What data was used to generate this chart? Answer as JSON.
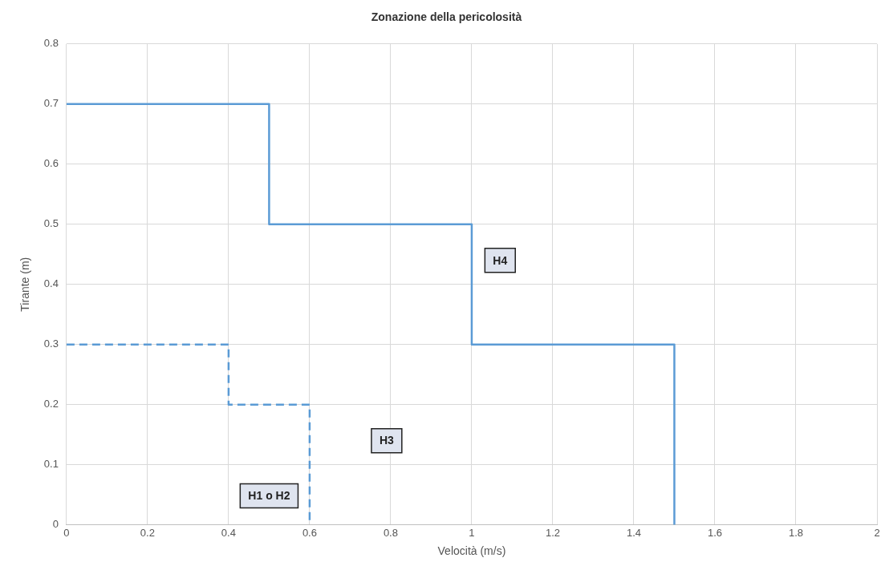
{
  "chart_data": {
    "type": "line",
    "title": "Zonazione della pericolosità",
    "xlabel": "Velocità (m/s)",
    "ylabel": "Tirante (m)",
    "xlim": [
      0,
      2
    ],
    "xticks": [
      0,
      0.2,
      0.4,
      0.6,
      0.8,
      1,
      1.2,
      1.4,
      1.6,
      1.8,
      2
    ],
    "ylim": [
      0,
      0.8
    ],
    "yticks": [
      0,
      0.1,
      0.2,
      0.3,
      0.4,
      0.5,
      0.6,
      0.7,
      0.8
    ],
    "grid": true,
    "marker": "none",
    "series": [
      {
        "color": "#5b9bd5",
        "line_style": "solid",
        "x": [
          0,
          0.5,
          0.5,
          1,
          1,
          1.5,
          1.5
        ],
        "values": [
          0.7,
          0.7,
          0.5,
          0.5,
          0.3,
          0.3,
          0
        ]
      },
      {
        "color": "#5b9bd5",
        "line_style": "dashed",
        "x": [
          0,
          0.4,
          0.4,
          0.6,
          0.6
        ],
        "values": [
          0.3,
          0.3,
          0.2,
          0.2,
          0
        ]
      }
    ],
    "annotations": [
      "H4",
      "H3",
      "H1 o H2"
    ]
  }
}
